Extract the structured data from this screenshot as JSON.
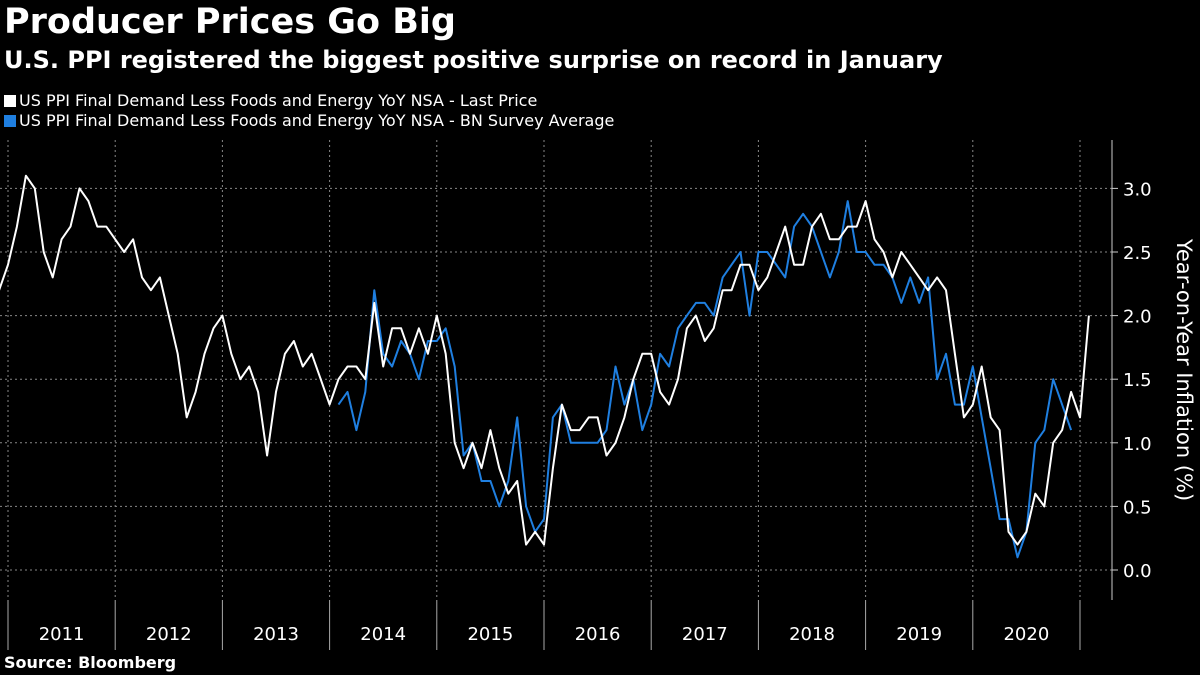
{
  "title": "Producer Prices Go Big",
  "subtitle": "U.S. PPI registered the biggest positive surprise on record in January",
  "source": "Source: Bloomberg",
  "colors": {
    "background": "#000000",
    "last_price": "#ffffff",
    "survey": "#1f7fe0",
    "grid": "#888888"
  },
  "chart_data": {
    "type": "line",
    "title": "Producer Prices Go Big",
    "subtitle": "U.S. PPI registered the biggest positive surprise on record in January",
    "ylabel": "Year-on-Year Inflation (%)",
    "ylim": [
      -0.25,
      3.4
    ],
    "yticks": [
      "0.0",
      "0.5",
      "1.0",
      "1.5",
      "2.0",
      "2.5",
      "3.0"
    ],
    "ytick_values": [
      0,
      0.5,
      1.0,
      1.5,
      2.0,
      2.5,
      3.0
    ],
    "x_categories": [
      "2011",
      "2012",
      "2013",
      "2014",
      "2015",
      "2016",
      "2017",
      "2018",
      "2019",
      "2020"
    ],
    "x_start": "2010-12",
    "x_end": "2021-01",
    "grid": true,
    "legend_position": "top-left",
    "series": [
      {
        "name": "US PPI Final Demand Less Foods and Energy YoY NSA - Last Price",
        "start": "2010-12",
        "values": [
          2.2,
          2.4,
          2.7,
          3.1,
          3.0,
          2.5,
          2.3,
          2.6,
          2.7,
          3.0,
          2.9,
          2.7,
          2.7,
          2.6,
          2.5,
          2.6,
          2.3,
          2.2,
          2.3,
          2.0,
          1.7,
          1.2,
          1.4,
          1.7,
          1.9,
          2.0,
          1.7,
          1.5,
          1.6,
          1.4,
          0.9,
          1.4,
          1.7,
          1.8,
          1.6,
          1.7,
          1.5,
          1.3,
          1.5,
          1.6,
          1.6,
          1.5,
          2.1,
          1.6,
          1.9,
          1.9,
          1.7,
          1.9,
          1.7,
          2.0,
          1.7,
          1.0,
          0.8,
          1.0,
          0.8,
          1.1,
          0.8,
          0.6,
          0.7,
          0.2,
          0.3,
          0.2,
          0.8,
          1.3,
          1.1,
          1.1,
          1.2,
          1.2,
          0.9,
          1.0,
          1.2,
          1.5,
          1.7,
          1.7,
          1.4,
          1.3,
          1.5,
          1.9,
          2.0,
          1.8,
          1.9,
          2.2,
          2.2,
          2.4,
          2.4,
          2.2,
          2.3,
          2.5,
          2.7,
          2.4,
          2.4,
          2.7,
          2.8,
          2.6,
          2.6,
          2.7,
          2.7,
          2.9,
          2.6,
          2.5,
          2.3,
          2.5,
          2.4,
          2.3,
          2.2,
          2.3,
          2.2,
          1.7,
          1.2,
          1.3,
          1.6,
          1.2,
          1.1,
          0.3,
          0.2,
          0.3,
          0.6,
          0.5,
          1.0,
          1.1,
          1.4,
          1.2,
          2.0
        ]
      },
      {
        "name": "US PPI Final Demand Less Foods and Energy YoY NSA - BN Survey Average",
        "start": "2014-02",
        "values": [
          1.3,
          1.4,
          1.1,
          1.4,
          2.2,
          1.7,
          1.6,
          1.8,
          1.7,
          1.5,
          1.8,
          1.8,
          1.9,
          1.6,
          0.9,
          1.0,
          0.7,
          0.7,
          0.5,
          0.7,
          1.2,
          0.5,
          0.3,
          0.4,
          1.2,
          1.3,
          1.0,
          1.0,
          1.0,
          1.0,
          1.1,
          1.6,
          1.3,
          1.5,
          1.1,
          1.3,
          1.7,
          1.6,
          1.9,
          2.0,
          2.1,
          2.1,
          2.0,
          2.3,
          2.4,
          2.5,
          2.0,
          2.5,
          2.5,
          2.4,
          2.3,
          2.7,
          2.8,
          2.7,
          2.5,
          2.3,
          2.5,
          2.9,
          2.5,
          2.5,
          2.4,
          2.4,
          2.3,
          2.1,
          2.3,
          2.1,
          2.3,
          1.5,
          1.7,
          1.3,
          1.3,
          1.6,
          1.2,
          0.8,
          0.4,
          0.4,
          0.1,
          0.3,
          1.0,
          1.1,
          1.5,
          1.3,
          1.1
        ]
      }
    ]
  }
}
